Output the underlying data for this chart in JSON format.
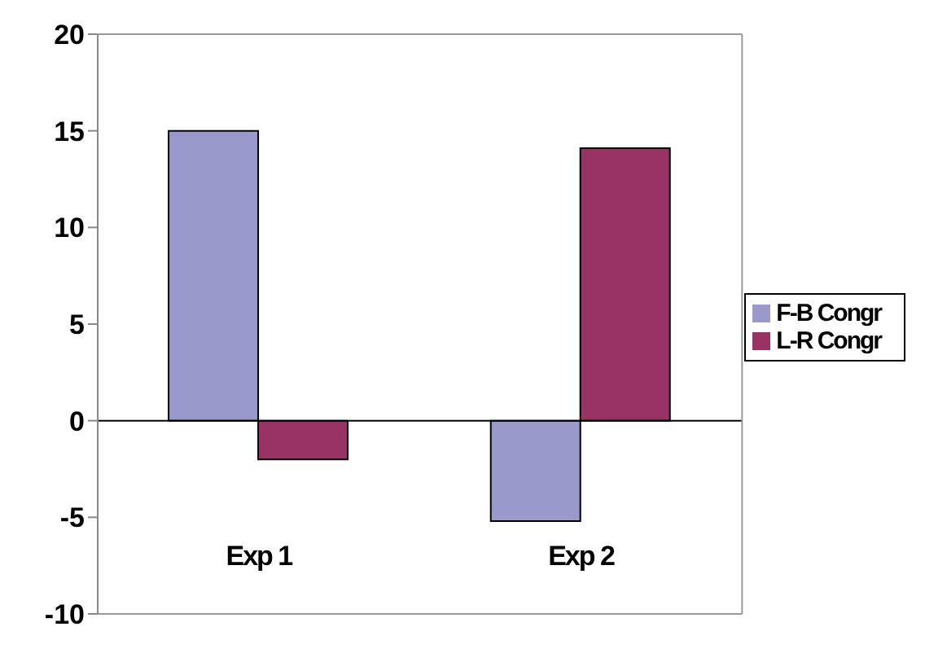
{
  "chart_data": {
    "type": "bar",
    "categories": [
      "Exp 1",
      "Exp 2"
    ],
    "series": [
      {
        "name": "F-B Congr",
        "color": "#9999cc",
        "values": [
          15,
          -5.2
        ]
      },
      {
        "name": "L-R Congr",
        "color": "#993366",
        "values": [
          -2,
          14.1
        ]
      }
    ],
    "ylim": [
      -10,
      20
    ],
    "yticks": [
      -10,
      -5,
      0,
      5,
      10,
      15,
      20
    ],
    "legend": "right"
  }
}
